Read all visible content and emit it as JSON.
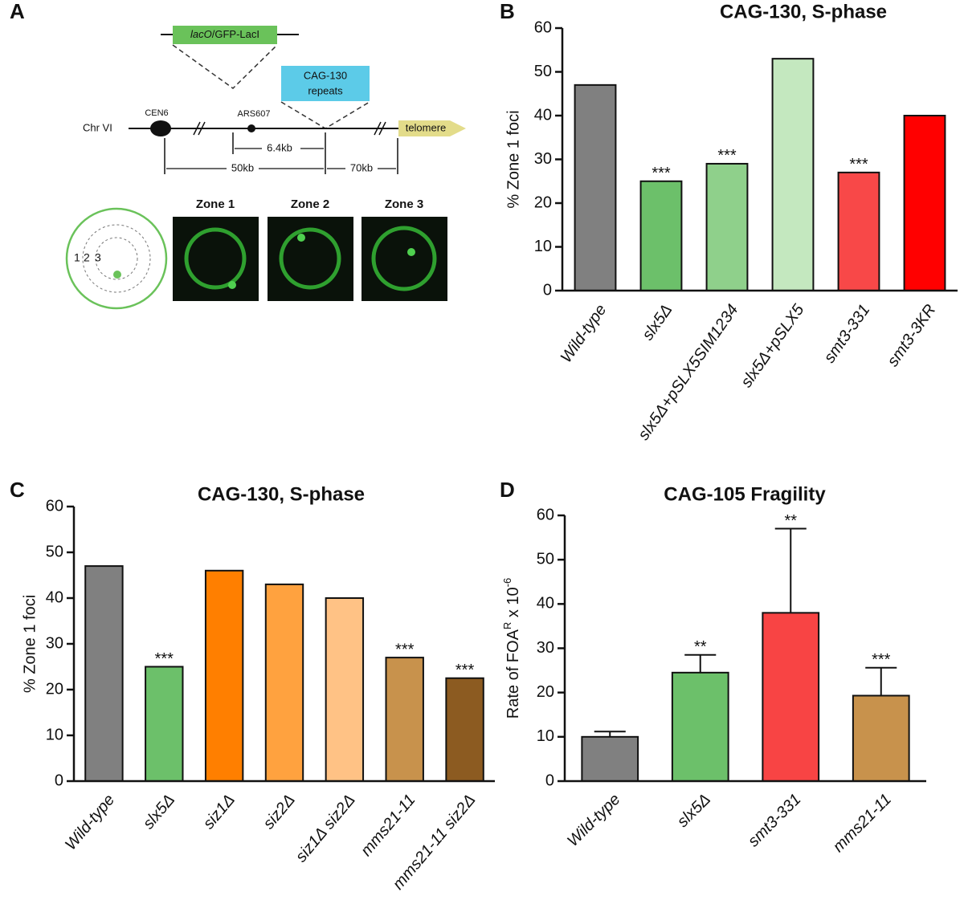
{
  "diagram": {
    "panel_label": "A",
    "construct_label": [
      "lacO",
      "/GFP-LacI"
    ],
    "repeats_label": [
      "CAG-130",
      "repeats"
    ],
    "chromosome": "Chr VI",
    "centromere": "CEN6",
    "origin": "ARS607",
    "telomere": "telomere",
    "distances": [
      "6.4kb",
      "50kb",
      "70kb"
    ],
    "zone_numbers": [
      "1",
      "2",
      "3"
    ],
    "zones": [
      "Zone 1",
      "Zone 2",
      "Zone 3"
    ]
  },
  "chart_data": [
    {
      "type": "bar",
      "panel_label": "B",
      "title": "CAG-130, S-phase",
      "y_label": "% Zone 1 foci",
      "categories": [
        "Wild-type",
        "slx5Δ",
        "slx5Δ+pSLX5SIM1234",
        "slx5Δ+pSLX5",
        "smt3-331",
        "smt3-3KR"
      ],
      "values": [
        47,
        25,
        29,
        53,
        27,
        40
      ],
      "colors": [
        "#808080",
        "#6cc06a",
        "#8fd08b",
        "#c4e8bf",
        "#f84848",
        "#ff0000"
      ],
      "significance": [
        null,
        "***",
        "***",
        null,
        "***",
        null
      ],
      "ylim": [
        0,
        60
      ],
      "yticks": [
        0,
        10,
        20,
        30,
        40,
        50,
        60
      ]
    },
    {
      "type": "bar",
      "panel_label": "C",
      "title": "CAG-130, S-phase",
      "y_label": "% Zone 1 foci",
      "categories": [
        "Wild-type",
        "slx5Δ",
        "siz1Δ",
        "siz2Δ",
        "siz1Δ siz2Δ",
        "mms21-11",
        "mms21-11 siz2Δ"
      ],
      "values": [
        47,
        25,
        46,
        43,
        40,
        27,
        22.5
      ],
      "colors": [
        "#808080",
        "#6cc06a",
        "#ff7f00",
        "#ffa23f",
        "#ffc285",
        "#c8924c",
        "#8c5b21"
      ],
      "significance": [
        null,
        "***",
        null,
        null,
        null,
        "***",
        "***"
      ],
      "ylim": [
        0,
        60
      ],
      "yticks": [
        0,
        10,
        20,
        30,
        40,
        50,
        60
      ]
    },
    {
      "type": "bar",
      "panel_label": "D",
      "title": "CAG-105 Fragility",
      "y_label": [
        "Rate of FOA",
        "R",
        " x 10",
        "-6"
      ],
      "categories": [
        "Wild-type",
        "slx5Δ",
        "smt3-331",
        "mms21-11"
      ],
      "values": [
        10,
        24.5,
        38,
        19.3
      ],
      "errors": [
        1.2,
        4,
        19,
        6.3
      ],
      "colors": [
        "#808080",
        "#6cc06a",
        "#f84444",
        "#c8924c"
      ],
      "significance": [
        null,
        "**",
        "**",
        "***"
      ],
      "ylim": [
        0,
        60
      ],
      "yticks": [
        0,
        10,
        20,
        30,
        40,
        50,
        60
      ]
    }
  ]
}
